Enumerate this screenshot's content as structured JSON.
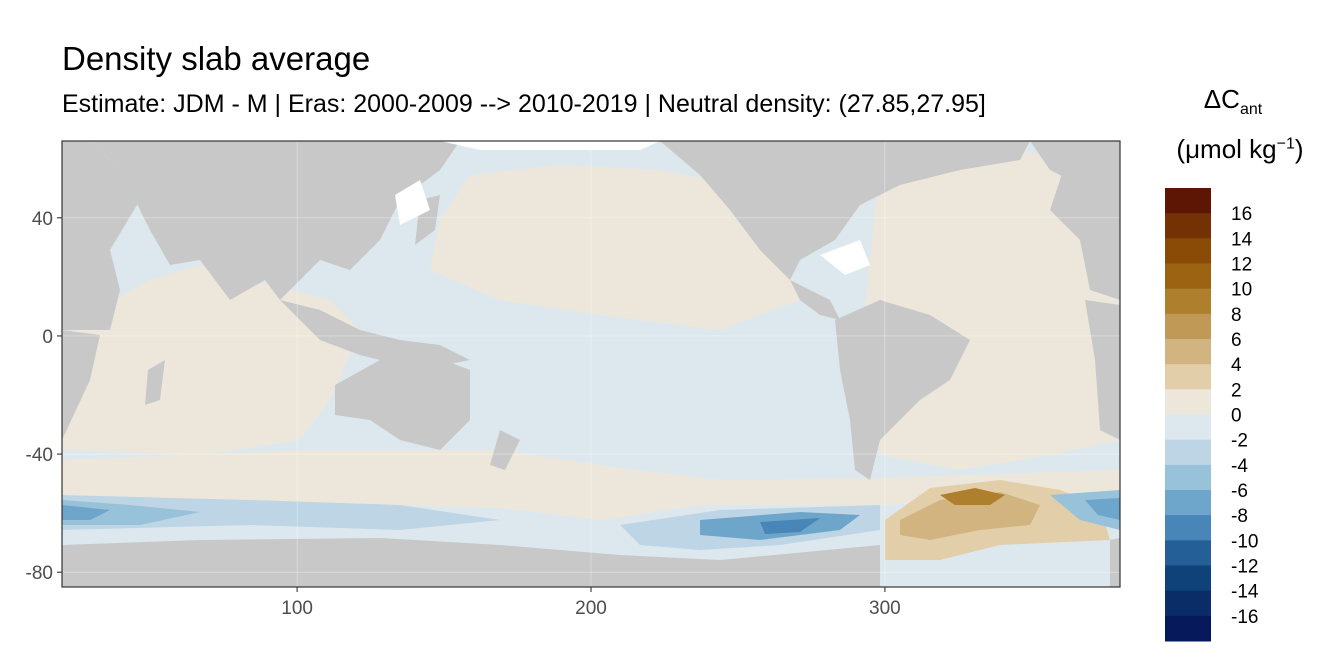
{
  "chart_data": {
    "type": "heatmap",
    "title": "Density slab average",
    "subtitle": "Estimate: JDM - M | Eras: 2000-2009 --> 2010-2019 | Neutral density: (27.85,27.95]",
    "xlabel": "",
    "ylabel": "",
    "xlim": [
      20,
      380
    ],
    "ylim": [
      -85,
      66
    ],
    "x_ticks": [
      100,
      200,
      300
    ],
    "y_ticks": [
      40,
      0,
      -40,
      -80
    ],
    "grid": true,
    "legend": {
      "placement": "right",
      "title_main": "ΔC",
      "title_sub": "ant",
      "unit_main": "(μmol kg",
      "unit_sup": "−1",
      "unit_close": ")",
      "levels": [
        16,
        14,
        12,
        10,
        8,
        6,
        4,
        2,
        0,
        -2,
        -4,
        -6,
        -8,
        -10,
        -12,
        -14,
        -16
      ],
      "colors": [
        "#5d1604",
        "#733104",
        "#894b05",
        "#9c6412",
        "#ae7f2c",
        "#bf9955",
        "#d2b481",
        "#e2cfaa",
        "#ece7da",
        "#dde8ee",
        "#bdd5e5",
        "#98c1da",
        "#6da6ca",
        "#4786b6",
        "#245f98",
        "#0f4279",
        "#0a2d68",
        "#06195b"
      ]
    },
    "background_colors": {
      "land": "#c8c8c8",
      "no_data": "#ffffff",
      "panel_border": "#333333"
    }
  }
}
